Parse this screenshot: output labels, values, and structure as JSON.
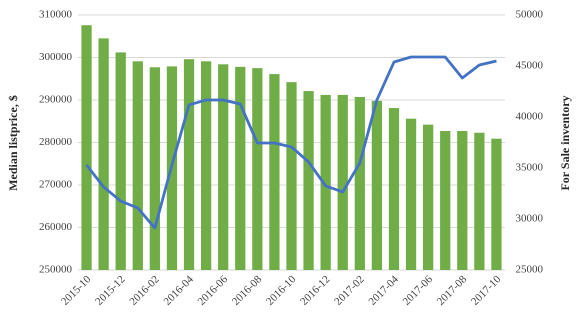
{
  "chart_data": {
    "type": "bar",
    "categories": [
      "2015-10",
      null,
      "2015-12",
      null,
      "2016-02",
      null,
      "2016-04",
      null,
      "2016-06",
      null,
      "2016-08",
      null,
      "2016-10",
      null,
      "2016-12",
      null,
      "2017-02",
      null,
      "2017-04",
      null,
      "2017-06",
      null,
      "2017-08",
      null,
      "2017-10"
    ],
    "y_label": "Median  listprice, $",
    "y2_label": "For Sale inventory",
    "series": [
      {
        "name": "Median listprice",
        "type": "bar",
        "color": "#70ad47",
        "values": [
          307600,
          304500,
          301200,
          299100,
          297700,
          297900,
          299600,
          299100,
          298400,
          297800,
          297500,
          296100,
          294200,
          292100,
          291200,
          291200,
          290700,
          289800,
          288100,
          285600,
          284200,
          282700,
          282700,
          282300,
          280900
        ]
      },
      {
        "name": "For Sale inventory",
        "type": "line",
        "axis": "y2",
        "color": "#4472c4",
        "values": [
          35300,
          33140,
          31760,
          31080,
          29120,
          35300,
          41180,
          41670,
          41670,
          41270,
          37450,
          37450,
          37060,
          35590,
          33240,
          32650,
          35490,
          41670,
          45390,
          45880,
          45880,
          45880,
          43820,
          45100,
          45490
        ]
      }
    ],
    "ylim": [
      250000,
      310000
    ],
    "yticks": [
      250000,
      260000,
      270000,
      280000,
      290000,
      300000,
      310000
    ],
    "y2lim": [
      25000,
      50000
    ],
    "y2ticks": [
      25000,
      30000,
      35000,
      40000,
      45000,
      50000
    ],
    "grid": true
  }
}
